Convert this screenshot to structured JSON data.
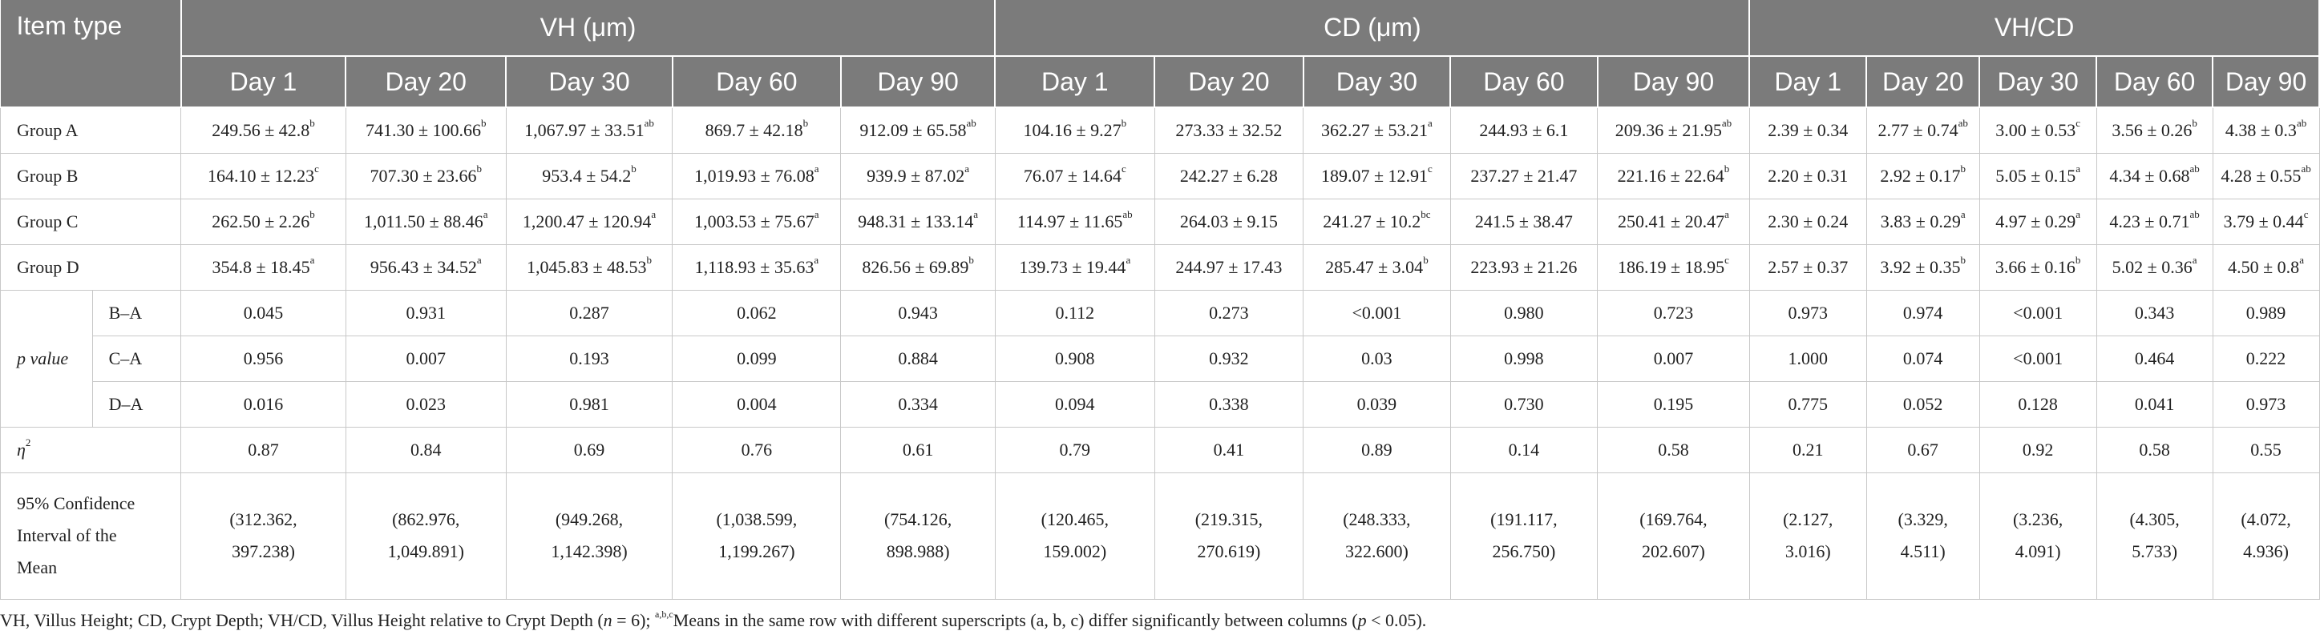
{
  "header": {
    "item_type": "Item type",
    "groups": [
      "VH (μm)",
      "CD (μm)",
      "VH/CD"
    ],
    "days": [
      "Day 1",
      "Day 20",
      "Day 30",
      "Day 60",
      "Day 90"
    ]
  },
  "rows": [
    {
      "label": "Group A",
      "cells": [
        {
          "v": "249.56 ± 42.8",
          "s": "b"
        },
        {
          "v": "741.30 ± 100.66",
          "s": "b"
        },
        {
          "v": "1,067.97 ± 33.51",
          "s": "ab"
        },
        {
          "v": "869.7 ± 42.18",
          "s": "b"
        },
        {
          "v": "912.09 ± 65.58",
          "s": "ab"
        },
        {
          "v": "104.16 ± 9.27",
          "s": "b"
        },
        {
          "v": "273.33 ± 32.52",
          "s": ""
        },
        {
          "v": "362.27 ± 53.21",
          "s": "a"
        },
        {
          "v": "244.93 ± 6.1",
          "s": ""
        },
        {
          "v": "209.36 ± 21.95",
          "s": "ab"
        },
        {
          "v": "2.39 ± 0.34",
          "s": ""
        },
        {
          "v": "2.77 ± 0.74",
          "s": "ab"
        },
        {
          "v": "3.00 ± 0.53",
          "s": "c"
        },
        {
          "v": "3.56 ± 0.26",
          "s": "b"
        },
        {
          "v": "4.38 ± 0.3",
          "s": "ab"
        }
      ]
    },
    {
      "label": "Group B",
      "cells": [
        {
          "v": "164.10 ± 12.23",
          "s": "c"
        },
        {
          "v": "707.30 ± 23.66",
          "s": "b"
        },
        {
          "v": "953.4 ± 54.2",
          "s": "b"
        },
        {
          "v": "1,019.93 ± 76.08",
          "s": "a"
        },
        {
          "v": "939.9 ± 87.02",
          "s": "a"
        },
        {
          "v": "76.07 ± 14.64",
          "s": "c"
        },
        {
          "v": "242.27 ± 6.28",
          "s": ""
        },
        {
          "v": "189.07 ± 12.91",
          "s": "c"
        },
        {
          "v": "237.27 ± 21.47",
          "s": ""
        },
        {
          "v": "221.16 ± 22.64",
          "s": "b"
        },
        {
          "v": "2.20 ± 0.31",
          "s": ""
        },
        {
          "v": "2.92 ± 0.17",
          "s": "b"
        },
        {
          "v": "5.05 ± 0.15",
          "s": "a"
        },
        {
          "v": "4.34 ± 0.68",
          "s": "ab"
        },
        {
          "v": "4.28 ± 0.55",
          "s": "ab"
        }
      ]
    },
    {
      "label": "Group C",
      "cells": [
        {
          "v": "262.50 ± 2.26",
          "s": "b"
        },
        {
          "v": "1,011.50 ± 88.46",
          "s": "a"
        },
        {
          "v": "1,200.47 ± 120.94",
          "s": "a"
        },
        {
          "v": "1,003.53 ± 75.67",
          "s": "a"
        },
        {
          "v": "948.31 ± 133.14",
          "s": "a"
        },
        {
          "v": "114.97 ± 11.65",
          "s": "ab"
        },
        {
          "v": "264.03 ± 9.15",
          "s": ""
        },
        {
          "v": "241.27 ± 10.2",
          "s": "bc"
        },
        {
          "v": "241.5 ± 38.47",
          "s": ""
        },
        {
          "v": "250.41 ± 20.47",
          "s": "a"
        },
        {
          "v": "2.30 ± 0.24",
          "s": ""
        },
        {
          "v": "3.83 ± 0.29",
          "s": "a"
        },
        {
          "v": "4.97 ± 0.29",
          "s": "a"
        },
        {
          "v": "4.23 ± 0.71",
          "s": "ab"
        },
        {
          "v": "3.79 ± 0.44",
          "s": "c"
        }
      ]
    },
    {
      "label": "Group D",
      "cells": [
        {
          "v": "354.8 ± 18.45",
          "s": "a"
        },
        {
          "v": "956.43 ± 34.52",
          "s": "a"
        },
        {
          "v": "1,045.83 ± 48.53",
          "s": "b"
        },
        {
          "v": "1,118.93 ± 35.63",
          "s": "a"
        },
        {
          "v": "826.56 ± 69.89",
          "s": "b"
        },
        {
          "v": "139.73 ± 19.44",
          "s": "a"
        },
        {
          "v": "244.97 ± 17.43",
          "s": ""
        },
        {
          "v": "285.47 ± 3.04",
          "s": "b"
        },
        {
          "v": "223.93 ± 21.26",
          "s": ""
        },
        {
          "v": "186.19 ± 18.95",
          "s": "c"
        },
        {
          "v": "2.57 ± 0.37",
          "s": ""
        },
        {
          "v": "3.92 ± 0.35",
          "s": "b"
        },
        {
          "v": "3.66 ± 0.16",
          "s": "b"
        },
        {
          "v": "5.02 ± 0.36",
          "s": "a"
        },
        {
          "v": "4.50 ± 0.8",
          "s": "a"
        }
      ]
    }
  ],
  "pvalue": {
    "label": "p value",
    "rows": [
      {
        "label": "B–A",
        "values": [
          "0.045",
          "0.931",
          "0.287",
          "0.062",
          "0.943",
          "0.112",
          "0.273",
          "<0.001",
          "0.980",
          "0.723",
          "0.973",
          "0.974",
          "<0.001",
          "0.343",
          "0.989"
        ]
      },
      {
        "label": "C–A",
        "values": [
          "0.956",
          "0.007",
          "0.193",
          "0.099",
          "0.884",
          "0.908",
          "0.932",
          "0.03",
          "0.998",
          "0.007",
          "1.000",
          "0.074",
          "<0.001",
          "0.464",
          "0.222"
        ]
      },
      {
        "label": "D–A",
        "values": [
          "0.016",
          "0.023",
          "0.981",
          "0.004",
          "0.334",
          "0.094",
          "0.338",
          "0.039",
          "0.730",
          "0.195",
          "0.775",
          "0.052",
          "0.128",
          "0.041",
          "0.973"
        ]
      }
    ]
  },
  "eta": {
    "label": "η",
    "sup": "2",
    "values": [
      "0.87",
      "0.84",
      "0.69",
      "0.76",
      "0.61",
      "0.79",
      "0.41",
      "0.89",
      "0.14",
      "0.58",
      "0.21",
      "0.67",
      "0.92",
      "0.58",
      "0.55"
    ]
  },
  "ci": {
    "label_lines": [
      "95% Confidence",
      "Interval of the",
      "Mean"
    ],
    "values": [
      [
        "(312.362,",
        "397.238)"
      ],
      [
        "(862.976,",
        "1,049.891)"
      ],
      [
        "(949.268,",
        "1,142.398)"
      ],
      [
        "(1,038.599,",
        "1,199.267)"
      ],
      [
        "(754.126,",
        "898.988)"
      ],
      [
        "(120.465,",
        "159.002)"
      ],
      [
        "(219.315,",
        "270.619)"
      ],
      [
        "(248.333,",
        "322.600)"
      ],
      [
        "(191.117,",
        "256.750)"
      ],
      [
        "(169.764,",
        "202.607)"
      ],
      [
        "(2.127,",
        "3.016)"
      ],
      [
        "(3.329,",
        "4.511)"
      ],
      [
        "(3.236,",
        "4.091)"
      ],
      [
        "(4.305,",
        "5.733)"
      ],
      [
        "(4.072,",
        "4.936)"
      ]
    ]
  },
  "footnote": {
    "part1": "VH, Villus Height; CD, Crypt Depth; VH/CD, Villus Height relative to Crypt Depth (",
    "n_var": "n",
    "part2": " = 6); ",
    "sup": "a,b,c",
    "part3": "Means in the same row with different superscripts (a, b, c) differ significantly between columns (",
    "p_var": "p",
    "part4": " < 0.05)."
  }
}
